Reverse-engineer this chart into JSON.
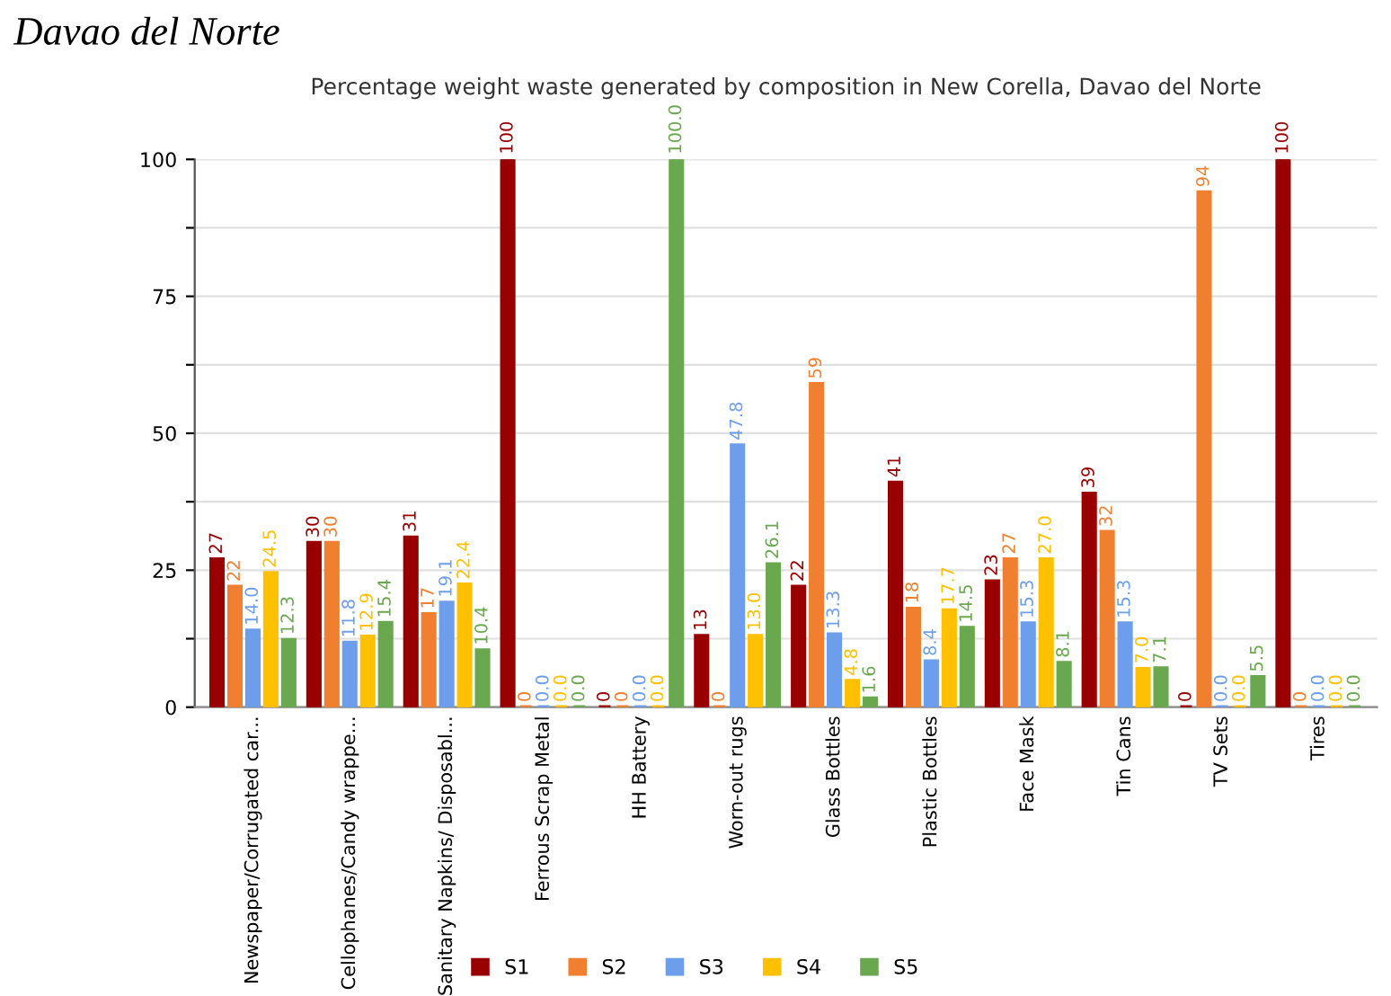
{
  "chart_data": {
    "type": "bar",
    "title": "Percentage weight waste generated by composition in New Corella, Davao del Norte",
    "annotations": [
      "Davao del Norte"
    ],
    "categories": [
      "Newspaper/Corrugated car...",
      "Cellophanes/Candy wrappe...",
      "Sanitary Napkins/ Disposabl...",
      "Ferrous Scrap Metal",
      "HH Battery",
      "Worn-out rugs",
      "Glass Bottles",
      "Plastic Bottles",
      "Face Mask",
      "Tin Cans",
      "TV Sets",
      "Tires"
    ],
    "series": [
      {
        "name": "S1",
        "color": "#990000",
        "values": [
          27,
          30,
          31,
          100,
          0,
          13,
          22,
          41,
          23,
          39,
          0,
          100
        ],
        "value_labels": [
          "27",
          "30",
          "31",
          "100",
          "0",
          "13",
          "22",
          "41",
          "23",
          "39",
          "0",
          "100"
        ]
      },
      {
        "name": "S2",
        "color": "#f08030",
        "values": [
          22,
          30,
          17,
          0,
          0,
          0,
          59,
          18,
          27,
          32,
          94,
          0
        ],
        "value_labels": [
          "22",
          "30",
          "17",
          "0",
          "0",
          "0",
          "59",
          "18",
          "27",
          "32",
          "94",
          "0"
        ]
      },
      {
        "name": "S3",
        "color": "#6d9eeb",
        "values": [
          14.0,
          11.8,
          19.1,
          0.0,
          0.0,
          47.8,
          13.3,
          8.4,
          15.3,
          15.3,
          0.0,
          0.0
        ],
        "value_labels": [
          "14.0",
          "11.8",
          "19.1",
          "0.0",
          "0.0",
          "47.8",
          "13.3",
          "8.4",
          "15.3",
          "15.3",
          "0.0",
          "0.0"
        ]
      },
      {
        "name": "S4",
        "color": "#ffc000",
        "values": [
          24.5,
          12.9,
          22.4,
          0.0,
          0.0,
          13.0,
          4.8,
          17.7,
          27.0,
          7.0,
          0.0,
          0.0
        ],
        "value_labels": [
          "24.5",
          "12.9",
          "22.4",
          "0.0",
          "0.0",
          "13.0",
          "4.8",
          "17.7",
          "27.0",
          "7.0",
          "0.0",
          "0.0"
        ]
      },
      {
        "name": "S5",
        "color": "#6aa84f",
        "values": [
          12.3,
          15.4,
          10.4,
          0.0,
          100.0,
          26.1,
          1.6,
          14.5,
          8.1,
          7.1,
          5.5,
          0.0
        ],
        "value_labels": [
          "12.3",
          "15.4",
          "10.4",
          "0.0",
          "100.0",
          "26.1",
          "1.6",
          "14.5",
          "8.1",
          "7.1",
          "5.5",
          "0.0"
        ]
      }
    ],
    "ylim": [
      0,
      100
    ],
    "yticks": [
      0,
      {
        "value": 12.5,
        "label": null
      },
      25,
      {
        "value": 37.5,
        "label": null
      },
      50,
      {
        "value": 62.5,
        "label": null
      },
      75,
      {
        "value": 87.5,
        "label": null
      },
      100
    ],
    "grid": "y",
    "legend": "bottom"
  }
}
